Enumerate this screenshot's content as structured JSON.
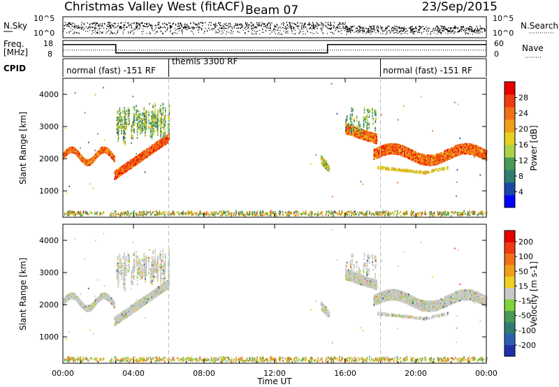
{
  "header": {
    "title": "Christmas Valley West (fitACF)",
    "beam": "Beam 07",
    "date": "23/Sep/2015"
  },
  "panel_labels": {
    "nsky": "N.Sky",
    "nsearch": "N.Search",
    "freq_line1": "Freq.",
    "freq_line2": "[MHz]",
    "nave": "Nave",
    "cpid": "CPID"
  },
  "scale_labels": {
    "n_top": "10^5",
    "n_bottom": "10^0",
    "freq_top": "18",
    "freq_bottom": "8",
    "nave_top": "60",
    "nave_bottom": "0"
  },
  "cpid_segments": [
    {
      "label": "normal (fast) -151 RF",
      "start_hour": 0,
      "end_hour": 6
    },
    {
      "label": "themis 3300 RF",
      "start_hour": 6,
      "end_hour": 18
    },
    {
      "label": "normal (fast) -151 RF",
      "start_hour": 18,
      "end_hour": 24
    }
  ],
  "chart_data": [
    {
      "type": "line",
      "name": "frequency",
      "x_unit": "hour UT",
      "ylim": [
        8,
        18
      ],
      "steps": [
        {
          "start_hour": 0,
          "end_hour": 3.0,
          "value": 15.5
        },
        {
          "start_hour": 3.0,
          "end_hour": 15.0,
          "value": 10.3
        },
        {
          "start_hour": 15.0,
          "end_hour": 24,
          "value": 15.5
        }
      ],
      "nave_level": 12
    },
    {
      "type": "heatmap",
      "name": "power",
      "xlabel": "",
      "ylabel": "Slant Range [km]",
      "xlim": [
        0,
        24
      ],
      "ylim": [
        180,
        4500
      ],
      "yticks": [
        1000,
        2000,
        3000,
        4000
      ],
      "colorbar": {
        "label": "Power [dB]",
        "ticks": [
          "4",
          "8",
          "12",
          "16",
          "20",
          "24",
          "28"
        ],
        "range": [
          0,
          32
        ],
        "colors": [
          "#0000ff",
          "#1c47a8",
          "#2f7d6f",
          "#4a9a55",
          "#a9d44a",
          "#e6d020",
          "#f0a018",
          "#f07018",
          "#f03a10",
          "#e80000"
        ]
      }
    },
    {
      "type": "heatmap",
      "name": "velocity",
      "xlabel": "Time UT",
      "ylabel": "Slant Range [km]",
      "xlim": [
        0,
        24
      ],
      "ylim": [
        180,
        4500
      ],
      "yticks": [
        1000,
        2000,
        3000,
        4000
      ],
      "xticks": [
        "00:00",
        "04:00",
        "08:00",
        "12:00",
        "16:00",
        "20:00",
        "00:00"
      ],
      "colorbar": {
        "label": "Velocity [m s-1]",
        "ticks": [
          "200",
          "100",
          "50",
          "15",
          "-15",
          "-50",
          "-100",
          "-200"
        ],
        "range": [
          -250,
          250
        ],
        "colors": [
          "#1f2fa8",
          "#2a5fb0",
          "#2f7d6f",
          "#4a9a55",
          "#7ed23a",
          "#c8c8c8",
          "#f0d020",
          "#f0a018",
          "#f07018",
          "#f03a10",
          "#e80000"
        ]
      }
    }
  ],
  "colors": {
    "frame": "#000000",
    "dashed_marker": "#bbbbbb",
    "velocity_gray": "#c6c6c6"
  }
}
